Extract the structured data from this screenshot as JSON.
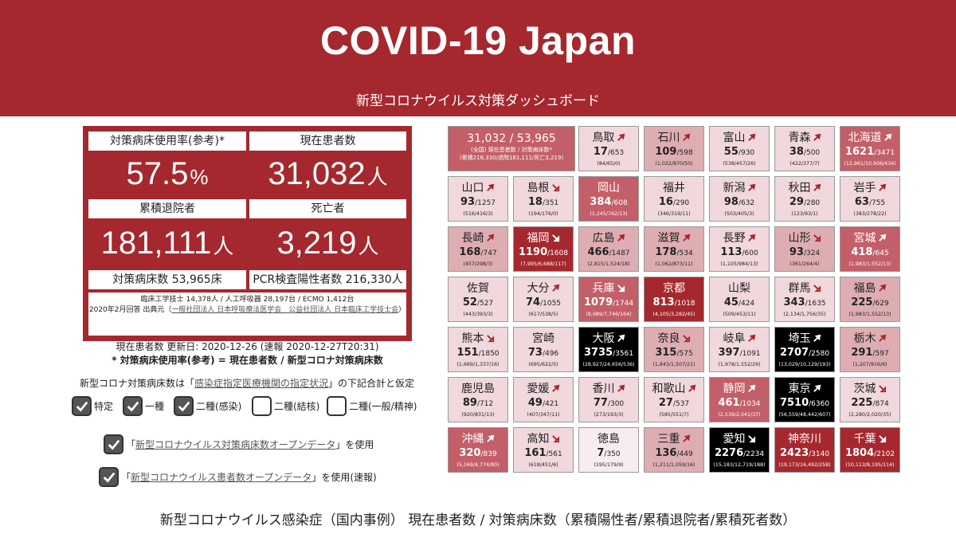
{
  "header": {
    "title": "COVID-19 Japan",
    "subtitle": "新型コロナウイルス対策ダッシュボード"
  },
  "stats": {
    "bed_usage_label": "対策病床使用率(参考)*",
    "bed_usage_value": "57.5",
    "bed_usage_unit": "%",
    "current_patients_label": "現在患者数",
    "current_patients_value": "31,032",
    "current_patients_unit": "人",
    "discharged_label": "累積退院者",
    "discharged_value": "181,111",
    "discharged_unit": "人",
    "deaths_label": "死亡者",
    "deaths_value": "3,219",
    "deaths_unit": "人",
    "beds_label": "対策病床数 53,965床",
    "pcr_label": "PCR検査陽性者数 216,330人",
    "note_line1": "臨床工学技士 14,378人 / 人工呼吸器 28,197台 / ECMO 1,412台",
    "note_line2_prefix": "2020年2月回答 出典元（",
    "note_line2_link": "一般社団法人 日本呼吸療法医学会　公益社団法人 日本臨床工学技士会",
    "note_line2_suffix": "）"
  },
  "update": {
    "line1": "現在患者数 更新日: 2020-12-26 (速報 2020-12-27T20:31)",
    "line2": "* 対策病床使用率(参考) = 現在患者数 / 新型コロナ対策病床数"
  },
  "basis": {
    "prefix": "新型コロナ対策病床数は「",
    "link": "感染症指定医療機関の指定状況",
    "suffix": "」の下記合計と仮定"
  },
  "checkboxes": [
    {
      "label": "特定",
      "checked": true
    },
    {
      "label": "一種",
      "checked": true
    },
    {
      "label": "二種(感染)",
      "checked": true
    },
    {
      "label": "二種(結核)",
      "checked": false
    },
    {
      "label": "二種(一般/精神)",
      "checked": false
    }
  ],
  "data_options": [
    {
      "prefix": "「",
      "link": "新型コロナウイルス対策病床数オープンデータ",
      "suffix": "」を使用"
    },
    {
      "prefix": "「",
      "link": "新型コロナウイルス患者数オープンデータ",
      "suffix": "」を使用(速報)"
    }
  ],
  "national": {
    "value": "31,032 / 53,965",
    "sub1": "(全国) 現在患者数 / 対策病床数*",
    "sub2": "(累積216,330/退院181,111/死亡3,219)"
  },
  "prefectures": [
    {
      "name": "鳥取",
      "current": "17",
      "beds": "/653",
      "sub": "(84/65/0)",
      "dir": "up",
      "level": 1
    },
    {
      "name": "石川",
      "current": "109",
      "beds": "/598",
      "sub": "(1,022/870/50)",
      "dir": "up",
      "level": 2
    },
    {
      "name": "富山",
      "current": "55",
      "beds": "/930",
      "sub": "(538/457/26)",
      "dir": "up",
      "level": 1
    },
    {
      "name": "青森",
      "current": "38",
      "beds": "/500",
      "sub": "(422/377/7)",
      "dir": "up",
      "level": 1
    },
    {
      "name": "北海道",
      "current": "1621",
      "beds": "/3471",
      "sub": "(12,961/10,906/434)",
      "dir": "up",
      "level": 3
    },
    {
      "name": "山口",
      "current": "93",
      "beds": "/1257",
      "sub": "(516/416/3)",
      "dir": "up",
      "level": 1
    },
    {
      "name": "島根",
      "current": "18",
      "beds": "/351",
      "sub": "(194/176/0)",
      "dir": "down",
      "level": 1
    },
    {
      "name": "岡山",
      "current": "384",
      "beds": "/608",
      "sub": "(1,245/762/13)",
      "dir": "none",
      "level": 3
    },
    {
      "name": "福井",
      "current": "16",
      "beds": "/290",
      "sub": "(346/319/11)",
      "dir": "none",
      "level": 1
    },
    {
      "name": "新潟",
      "current": "98",
      "beds": "/632",
      "sub": "(503/405/3)",
      "dir": "up",
      "level": 1
    },
    {
      "name": "秋田",
      "current": "29",
      "beds": "/280",
      "sub": "(123/93/1)",
      "dir": "up",
      "level": 1
    },
    {
      "name": "岩手",
      "current": "63",
      "beds": "/755",
      "sub": "(383/278/22)",
      "dir": "up",
      "level": 1
    },
    {
      "name": "長崎",
      "current": "168",
      "beds": "/747",
      "sub": "(457/298/3)",
      "dir": "up",
      "level": 2
    },
    {
      "name": "福岡",
      "current": "1190",
      "beds": "/1608",
      "sub": "(7,995/6,688/117)",
      "dir": "down",
      "level": 4
    },
    {
      "name": "広島",
      "current": "466",
      "beds": "/1487",
      "sub": "(2,815/1,524/18)",
      "dir": "up",
      "level": 2
    },
    {
      "name": "滋賀",
      "current": "178",
      "beds": "/534",
      "sub": "(1,062/873/11)",
      "dir": "up",
      "level": 2
    },
    {
      "name": "長野",
      "current": "113",
      "beds": "/600",
      "sub": "(1,105/984/13)",
      "dir": "up",
      "level": 1
    },
    {
      "name": "山形",
      "current": "93",
      "beds": "/324",
      "sub": "(361/264/4)",
      "dir": "down",
      "level": 2
    },
    {
      "name": "宮城",
      "current": "418",
      "beds": "/645",
      "sub": "(1,983/1,552/13)",
      "dir": "up",
      "level": 3
    },
    {
      "name": "佐賀",
      "current": "52",
      "beds": "/527",
      "sub": "(443/393/3)",
      "dir": "none",
      "level": 1
    },
    {
      "name": "大分",
      "current": "74",
      "beds": "/1055",
      "sub": "(617/538/5)",
      "dir": "up",
      "level": 1
    },
    {
      "name": "兵庫",
      "current": "1079",
      "beds": "/1744",
      "sub": "(8,989/7,746/164)",
      "dir": "down",
      "level": 3
    },
    {
      "name": "京都",
      "current": "813",
      "beds": "/1018",
      "sub": "(4,105/3,282/45)",
      "dir": "none",
      "level": 4
    },
    {
      "name": "山梨",
      "current": "45",
      "beds": "/424",
      "sub": "(509/453/11)",
      "dir": "none",
      "level": 1
    },
    {
      "name": "群馬",
      "current": "343",
      "beds": "/1635",
      "sub": "(2,134/1,756/35)",
      "dir": "down",
      "level": 1
    },
    {
      "name": "福島",
      "current": "225",
      "beds": "/629",
      "sub": "(1,983/1,552/13)",
      "dir": "up",
      "level": 2
    },
    {
      "name": "熊本",
      "current": "151",
      "beds": "/1850",
      "sub": "(1,669/1,337/16)",
      "dir": "down",
      "level": 1
    },
    {
      "name": "宮崎",
      "current": "73",
      "beds": "/496",
      "sub": "(695/622/5)",
      "dir": "none",
      "level": 1
    },
    {
      "name": "大阪",
      "current": "3735",
      "beds": "/3561",
      "sub": "(28,927/24,656/536)",
      "dir": "up",
      "level": 5
    },
    {
      "name": "奈良",
      "current": "315",
      "beds": "/575",
      "sub": "(1,843/1,507/21)",
      "dir": "down",
      "level": 2
    },
    {
      "name": "岐阜",
      "current": "397",
      "beds": "/1091",
      "sub": "(1,978/1,552/29)",
      "dir": "up",
      "level": 1
    },
    {
      "name": "埼玉",
      "current": "2707",
      "beds": "/2580",
      "sub": "(13,029/10,129/193)",
      "dir": "up",
      "level": 5
    },
    {
      "name": "栃木",
      "current": "291",
      "beds": "/597",
      "sub": "(1,207/916/6)",
      "dir": "up",
      "level": 2
    },
    {
      "name": "鹿児島",
      "current": "89",
      "beds": "/712",
      "sub": "(920/831/13)",
      "dir": "none",
      "level": 1
    },
    {
      "name": "愛媛",
      "current": "49",
      "beds": "/421",
      "sub": "(407/347/11)",
      "dir": "up",
      "level": 1
    },
    {
      "name": "香川",
      "current": "77",
      "beds": "/300",
      "sub": "(273/193/3)",
      "dir": "up",
      "level": 1
    },
    {
      "name": "和歌山",
      "current": "27",
      "beds": "/537",
      "sub": "(585/551/7)",
      "dir": "up",
      "level": 1
    },
    {
      "name": "静岡",
      "current": "461",
      "beds": "/1034",
      "sub": "(2,539/2,041/37)",
      "dir": "up",
      "level": 3
    },
    {
      "name": "東京",
      "current": "7510",
      "beds": "/6360",
      "sub": "(56,559/48,442/607)",
      "dir": "up",
      "level": 5
    },
    {
      "name": "茨城",
      "current": "225",
      "beds": "/874",
      "sub": "(2,280/2,020/35)",
      "dir": "down",
      "level": 1
    },
    {
      "name": "沖縄",
      "current": "320",
      "beds": "/839",
      "sub": "(5,169/4,774/80)",
      "dir": "up",
      "level": 3
    },
    {
      "name": "高知",
      "current": "161",
      "beds": "/561",
      "sub": "(618/451/6)",
      "dir": "down",
      "level": 1
    },
    {
      "name": "徳島",
      "current": "7",
      "beds": "/350",
      "sub": "(195/179/9)",
      "dir": "none",
      "level": 0
    },
    {
      "name": "三重",
      "current": "136",
      "beds": "/449",
      "sub": "(1,211/1,059/16)",
      "dir": "up",
      "level": 2
    },
    {
      "name": "愛知",
      "current": "2276",
      "beds": "/2234",
      "sub": "(15,183/12,719/188)",
      "dir": "down",
      "level": 5
    },
    {
      "name": "神奈川",
      "current": "2423",
      "beds": "/3140",
      "sub": "(19,173/16,492/258)",
      "dir": "none",
      "level": 4
    },
    {
      "name": "千葉",
      "current": "1804",
      "beds": "/2102",
      "sub": "(10,113/8,195/114)",
      "dir": "down",
      "level": 4
    }
  ],
  "colors": {
    "brand": "#a5282e",
    "level0": "#f7ecee",
    "level1": "#f0d8dc",
    "level2": "#deadb2",
    "level3": "#c35f68",
    "level4": "#a5282e",
    "level5": "#000000"
  },
  "caption": "新型コロナウイルス感染症（国内事例） 現在患者数 / 対策病床数（累積陽性者/累積退院者/累積死者数）"
}
